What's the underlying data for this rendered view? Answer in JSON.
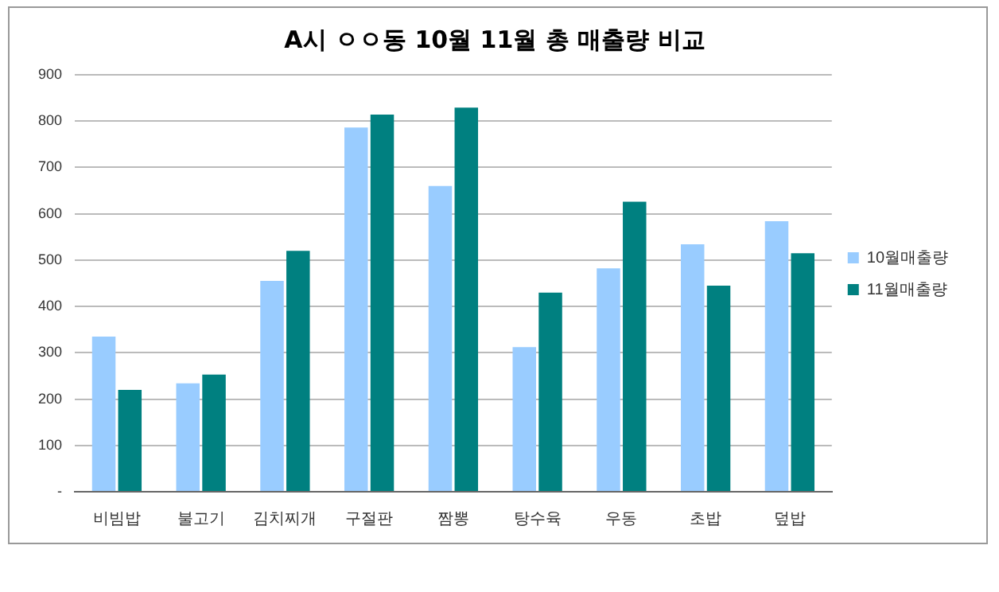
{
  "chart_data": {
    "type": "bar",
    "title": "A시 ㅇㅇ동 10월 11월 총 매출량 비교",
    "categories": [
      "비빔밥",
      "불고기",
      "김치찌개",
      "구절판",
      "짬뽕",
      "탕수육",
      "우동",
      "초밥",
      "덮밥"
    ],
    "series": [
      {
        "name": "10월매출량",
        "color": "#99ccff",
        "values": [
          335,
          234,
          455,
          786,
          660,
          312,
          482,
          534,
          584
        ]
      },
      {
        "name": "11월매출량",
        "color": "#008080",
        "values": [
          220,
          253,
          520,
          814,
          829,
          430,
          626,
          445,
          515
        ]
      }
    ],
    "ylim": [
      0,
      900
    ],
    "yticks": [
      {
        "value": 0,
        "label": "-"
      },
      100,
      200,
      300,
      400,
      500,
      600,
      700,
      800,
      900
    ],
    "grid": "y",
    "legend": "right"
  }
}
